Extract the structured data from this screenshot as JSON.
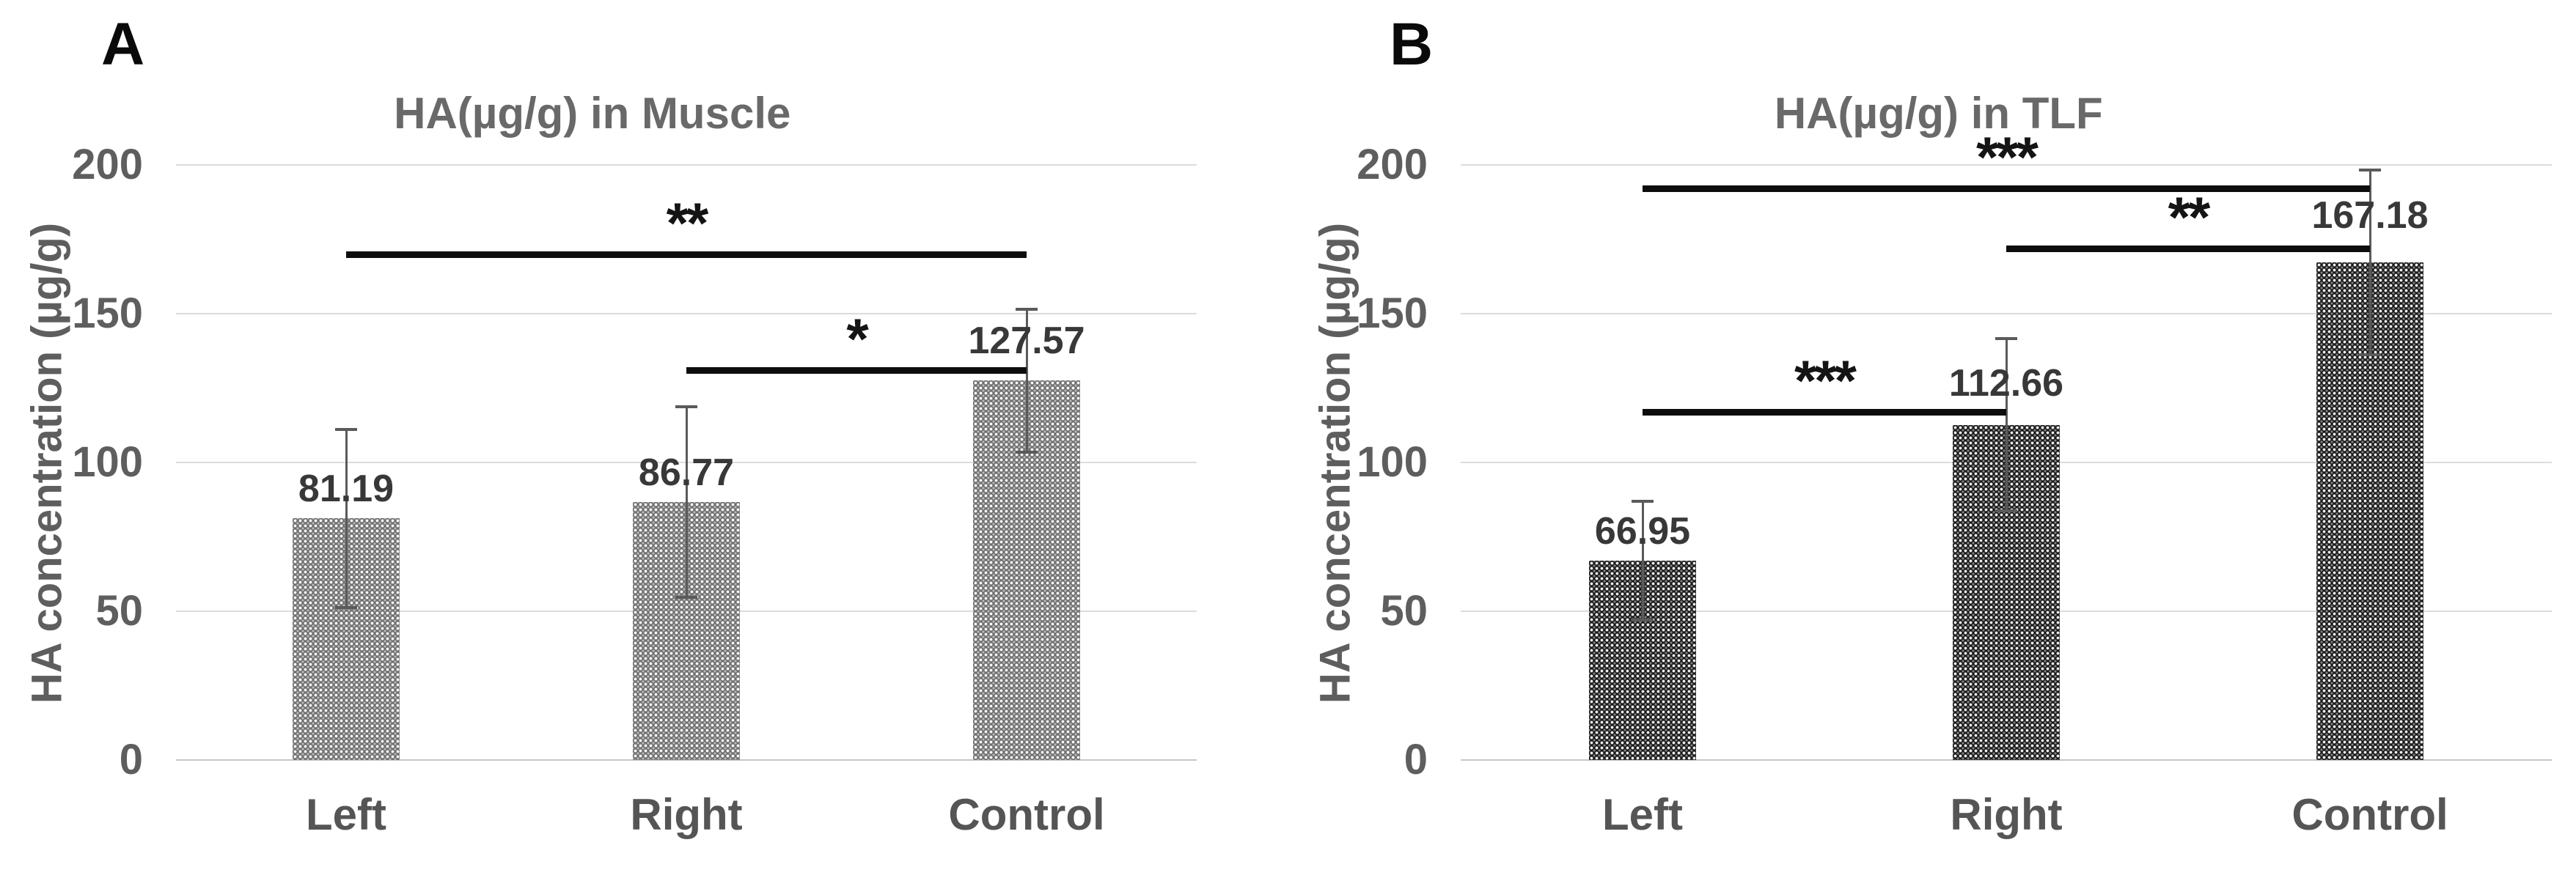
{
  "figure_type": "two-panel grouped bar figure with significance brackets",
  "chart_data": [
    {
      "type": "bar",
      "panel_label": "A",
      "title": "HA(µg/g) in Muscle",
      "ylabel": "HA concentration (µg/g)",
      "xlabel": "",
      "categories": [
        "Left",
        "Right",
        "Control"
      ],
      "values": [
        81.19,
        86.77,
        127.57
      ],
      "value_labels": [
        "81.19",
        "86.77",
        "127.57"
      ],
      "error_bars": {
        "up": [
          30,
          32,
          24
        ],
        "down": [
          30,
          32,
          24
        ]
      },
      "yticks": [
        0,
        50,
        100,
        150,
        200
      ],
      "ylim": [
        0,
        200
      ],
      "grid": true,
      "legend": "none",
      "bar_pattern": "woven-white-dots",
      "bar_color": "#6e6e6e",
      "significance": [
        {
          "between": [
            "Left",
            "Control"
          ],
          "line_y": 170,
          "stars": "**"
        },
        {
          "between": [
            "Right",
            "Control"
          ],
          "line_y": 131,
          "stars": "*"
        }
      ]
    },
    {
      "type": "bar",
      "panel_label": "B",
      "title": "HA(µg/g) in TLF",
      "ylabel": "HA concentration (µg/g)",
      "xlabel": "",
      "categories": [
        "Left",
        "Right",
        "Control"
      ],
      "values": [
        66.95,
        112.66,
        167.18
      ],
      "value_labels": [
        "66.95",
        "112.66",
        "167.18"
      ],
      "error_bars": {
        "up": [
          20,
          29,
          31
        ],
        "down": [
          20,
          29,
          31
        ]
      },
      "yticks": [
        0,
        50,
        100,
        150,
        200
      ],
      "ylim": [
        0,
        200
      ],
      "grid": true,
      "legend": "none",
      "bar_pattern": "woven-white-dots",
      "bar_color": "#181818",
      "significance": [
        {
          "between": [
            "Left",
            "Control"
          ],
          "line_y": 192,
          "stars": "***"
        },
        {
          "between": [
            "Right",
            "Control"
          ],
          "line_y": 172,
          "stars": "**"
        },
        {
          "between": [
            "Left",
            "Right"
          ],
          "line_y": 117,
          "stars": "***"
        }
      ]
    }
  ],
  "colors": {
    "background": "#ffffff",
    "gridline": "#dcdcdc",
    "baseline": "#c7c7c7",
    "axis_text": "#5e5e5e",
    "title_text": "#696969",
    "category_text": "#555555",
    "value_label_text": "#383838",
    "error_bar": "#5a5a5a",
    "significance": "#0d0d0d",
    "panel_letter": "#0a0a0a"
  }
}
